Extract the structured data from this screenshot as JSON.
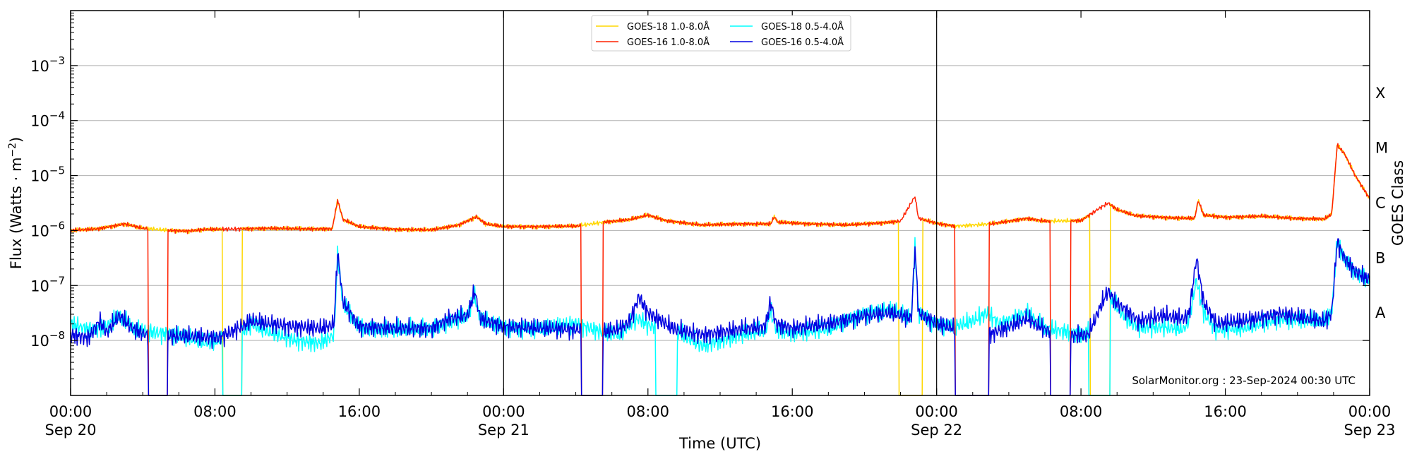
{
  "chart_data": {
    "type": "line",
    "xlabel": "Time (UTC)",
    "ylabel_main": "Flux (Watts · m",
    "ylabel_sup": "−2",
    "ylabel_close": ")",
    "right_label": "GOES Class",
    "credit": "SolarMonitor.org : 23-Sep-2024 00:30 UTC",
    "scale": "log",
    "grid": "horizontal at decades",
    "legend_placement": "top-center",
    "xlim_hours": [
      0,
      72
    ],
    "ylim_exp": [
      -9,
      -2
    ],
    "xticks": [
      {
        "h": 0,
        "line1": "00:00",
        "line2": "Sep 20"
      },
      {
        "h": 8,
        "line1": "08:00",
        "line2": ""
      },
      {
        "h": 16,
        "line1": "16:00",
        "line2": ""
      },
      {
        "h": 24,
        "line1": "00:00",
        "line2": "Sep 21"
      },
      {
        "h": 32,
        "line1": "08:00",
        "line2": ""
      },
      {
        "h": 40,
        "line1": "16:00",
        "line2": ""
      },
      {
        "h": 48,
        "line1": "00:00",
        "line2": "Sep 22"
      },
      {
        "h": 56,
        "line1": "08:00",
        "line2": ""
      },
      {
        "h": 64,
        "line1": "16:00",
        "line2": ""
      },
      {
        "h": 72,
        "line1": "00:00",
        "line2": "Sep 23"
      }
    ],
    "yticks": [
      {
        "exp": -8,
        "base": "10",
        "sup": "−8"
      },
      {
        "exp": -7,
        "base": "10",
        "sup": "−7"
      },
      {
        "exp": -6,
        "base": "10",
        "sup": "−6"
      },
      {
        "exp": -5,
        "base": "10",
        "sup": "−5"
      },
      {
        "exp": -4,
        "base": "10",
        "sup": "−4"
      },
      {
        "exp": -3,
        "base": "10",
        "sup": "−3"
      }
    ],
    "goes_classes": [
      {
        "label": "A",
        "exp": -7.5
      },
      {
        "label": "B",
        "exp": -6.5
      },
      {
        "label": "C",
        "exp": -5.5
      },
      {
        "label": "M",
        "exp": -4.5
      },
      {
        "label": "X",
        "exp": -3.5
      }
    ],
    "day_lines_hours": [
      24,
      48
    ],
    "series": [
      {
        "name": "GOES-18 1.0-8.0Å",
        "color": "#ffd700",
        "points": [
          [
            0,
            -6.0
          ],
          [
            1.5,
            -5.97
          ],
          [
            3,
            -5.88
          ],
          [
            4,
            -5.96
          ],
          [
            5.5,
            -6.0
          ],
          [
            6.5,
            -6.01
          ],
          [
            7.5,
            -5.98
          ],
          [
            8.2,
            -5.98
          ],
          [
            9.5,
            -5.97
          ],
          [
            11,
            -5.96
          ],
          [
            13,
            -5.97
          ],
          [
            14.5,
            -5.97
          ],
          [
            14.8,
            -5.45
          ],
          [
            15.1,
            -5.8
          ],
          [
            16,
            -5.93
          ],
          [
            18,
            -5.98
          ],
          [
            20,
            -5.99
          ],
          [
            21.5,
            -5.9
          ],
          [
            22.5,
            -5.75
          ],
          [
            23,
            -5.88
          ],
          [
            24,
            -5.93
          ],
          [
            26,
            -5.93
          ],
          [
            28,
            -5.92
          ],
          [
            29.5,
            -5.85
          ],
          [
            31,
            -5.8
          ],
          [
            32,
            -5.72
          ],
          [
            33,
            -5.82
          ],
          [
            35,
            -5.9
          ],
          [
            37,
            -5.88
          ],
          [
            38.8,
            -5.88
          ],
          [
            39,
            -5.75
          ],
          [
            39.2,
            -5.85
          ],
          [
            41,
            -5.88
          ],
          [
            43,
            -5.9
          ],
          [
            45,
            -5.86
          ],
          [
            46,
            -5.83
          ],
          [
            46.8,
            -5.38
          ],
          [
            47,
            -5.78
          ],
          [
            48,
            -5.87
          ],
          [
            49,
            -5.92
          ],
          [
            51,
            -5.88
          ],
          [
            52,
            -5.83
          ],
          [
            53,
            -5.78
          ],
          [
            54,
            -5.83
          ],
          [
            56,
            -5.82
          ],
          [
            57,
            -5.6
          ],
          [
            57.5,
            -5.5
          ],
          [
            58,
            -5.62
          ],
          [
            59,
            -5.73
          ],
          [
            61,
            -5.77
          ],
          [
            62.3,
            -5.78
          ],
          [
            62.5,
            -5.45
          ],
          [
            62.8,
            -5.72
          ],
          [
            64,
            -5.76
          ],
          [
            66,
            -5.74
          ],
          [
            68,
            -5.78
          ],
          [
            69.5,
            -5.79
          ],
          [
            69.9,
            -5.7
          ],
          [
            70.2,
            -4.45
          ],
          [
            70.6,
            -4.6
          ],
          [
            71.2,
            -5.0
          ],
          [
            72,
            -5.42
          ]
        ],
        "dropouts": [
          [
            8.4,
            9.5
          ],
          [
            45.9,
            47.2
          ],
          [
            56.5,
            57.6
          ]
        ]
      },
      {
        "name": "GOES-16 1.0-8.0Å",
        "color": "#ff2000",
        "points": [
          [
            0,
            -6.0
          ],
          [
            1.5,
            -5.97
          ],
          [
            3,
            -5.88
          ],
          [
            4,
            -5.96
          ],
          [
            5.5,
            -6.0
          ],
          [
            6.5,
            -6.01
          ],
          [
            7.5,
            -5.98
          ],
          [
            8.2,
            -5.98
          ],
          [
            9.5,
            -5.97
          ],
          [
            11,
            -5.96
          ],
          [
            13,
            -5.97
          ],
          [
            14.5,
            -5.97
          ],
          [
            14.8,
            -5.45
          ],
          [
            15.1,
            -5.8
          ],
          [
            16,
            -5.93
          ],
          [
            18,
            -5.98
          ],
          [
            20,
            -5.99
          ],
          [
            21.5,
            -5.9
          ],
          [
            22.5,
            -5.75
          ],
          [
            23,
            -5.88
          ],
          [
            24,
            -5.93
          ],
          [
            26,
            -5.93
          ],
          [
            28,
            -5.92
          ],
          [
            29.5,
            -5.85
          ],
          [
            31,
            -5.8
          ],
          [
            32,
            -5.72
          ],
          [
            33,
            -5.82
          ],
          [
            35,
            -5.9
          ],
          [
            37,
            -5.88
          ],
          [
            38.8,
            -5.88
          ],
          [
            39,
            -5.75
          ],
          [
            39.2,
            -5.85
          ],
          [
            41,
            -5.88
          ],
          [
            43,
            -5.9
          ],
          [
            45,
            -5.86
          ],
          [
            46,
            -5.83
          ],
          [
            46.8,
            -5.38
          ],
          [
            47,
            -5.78
          ],
          [
            48,
            -5.87
          ],
          [
            49,
            -5.92
          ],
          [
            51,
            -5.88
          ],
          [
            52,
            -5.83
          ],
          [
            53,
            -5.78
          ],
          [
            54,
            -5.83
          ],
          [
            56,
            -5.82
          ],
          [
            57,
            -5.6
          ],
          [
            57.5,
            -5.5
          ],
          [
            58,
            -5.62
          ],
          [
            59,
            -5.73
          ],
          [
            61,
            -5.77
          ],
          [
            62.3,
            -5.78
          ],
          [
            62.5,
            -5.45
          ],
          [
            62.8,
            -5.72
          ],
          [
            64,
            -5.76
          ],
          [
            66,
            -5.74
          ],
          [
            68,
            -5.78
          ],
          [
            69.5,
            -5.79
          ],
          [
            69.9,
            -5.7
          ],
          [
            70.2,
            -4.45
          ],
          [
            70.6,
            -4.6
          ],
          [
            71.2,
            -5.0
          ],
          [
            72,
            -5.42
          ]
        ],
        "dropouts": [
          [
            4.3,
            5.4
          ],
          [
            28.3,
            29.5
          ],
          [
            49.0,
            50.9
          ],
          [
            54.3,
            55.4
          ]
        ]
      },
      {
        "name": "GOES-18 0.5-4.0Å",
        "color": "#00ffff",
        "points": [
          [
            0,
            -7.7
          ],
          [
            1,
            -7.8
          ],
          [
            2,
            -7.75
          ],
          [
            2.7,
            -7.55
          ],
          [
            3.5,
            -7.8
          ],
          [
            4.5,
            -7.85
          ],
          [
            6,
            -7.9
          ],
          [
            7.5,
            -8.05
          ],
          [
            8.2,
            -8.0
          ],
          [
            9.5,
            -7.85
          ],
          [
            10,
            -7.7
          ],
          [
            11,
            -7.85
          ],
          [
            12.5,
            -8.0
          ],
          [
            13.8,
            -8.05
          ],
          [
            14.6,
            -7.9
          ],
          [
            14.8,
            -6.45
          ],
          [
            15.1,
            -7.35
          ],
          [
            16,
            -7.75
          ],
          [
            18,
            -7.8
          ],
          [
            20,
            -7.78
          ],
          [
            21,
            -7.65
          ],
          [
            22,
            -7.55
          ],
          [
            22.4,
            -7.2
          ],
          [
            22.7,
            -7.62
          ],
          [
            24,
            -7.75
          ],
          [
            26,
            -7.8
          ],
          [
            27.5,
            -7.72
          ],
          [
            28,
            -7.7
          ],
          [
            29.5,
            -7.85
          ],
          [
            30.5,
            -7.9
          ],
          [
            31,
            -7.7
          ],
          [
            31.5,
            -7.6
          ],
          [
            32,
            -7.72
          ],
          [
            33.5,
            -7.82
          ],
          [
            35,
            -8.1
          ],
          [
            37,
            -7.9
          ],
          [
            38.5,
            -7.82
          ],
          [
            38.8,
            -7.45
          ],
          [
            39.1,
            -7.8
          ],
          [
            40,
            -7.85
          ],
          [
            42,
            -7.8
          ],
          [
            44,
            -7.5
          ],
          [
            45.5,
            -7.45
          ],
          [
            46.6,
            -7.6
          ],
          [
            46.8,
            -6.3
          ],
          [
            47,
            -7.5
          ],
          [
            48,
            -7.7
          ],
          [
            49,
            -7.75
          ],
          [
            50,
            -7.65
          ],
          [
            50.8,
            -7.5
          ],
          [
            51.5,
            -7.7
          ],
          [
            53,
            -7.5
          ],
          [
            54,
            -7.78
          ],
          [
            55.5,
            -7.85
          ],
          [
            56.2,
            -7.9
          ],
          [
            57,
            -7.3
          ],
          [
            57.5,
            -7.1
          ],
          [
            57.9,
            -7.35
          ],
          [
            58.5,
            -7.6
          ],
          [
            59.2,
            -7.75
          ],
          [
            60.5,
            -7.75
          ],
          [
            61.7,
            -7.8
          ],
          [
            62,
            -7.6
          ],
          [
            62.4,
            -6.9
          ],
          [
            62.8,
            -7.5
          ],
          [
            63.5,
            -7.8
          ],
          [
            65,
            -7.78
          ],
          [
            67,
            -7.6
          ],
          [
            69.5,
            -7.65
          ],
          [
            69.9,
            -7.5
          ],
          [
            70.2,
            -6.2
          ],
          [
            70.6,
            -6.5
          ],
          [
            71.2,
            -6.75
          ],
          [
            72,
            -6.9
          ]
        ],
        "dropouts": [
          [
            8.4,
            9.5
          ],
          [
            32.4,
            33.6
          ],
          [
            56.4,
            57.6
          ]
        ]
      },
      {
        "name": "GOES-16 0.5-4.0Å",
        "color": "#0000e0",
        "points": [
          [
            0,
            -7.9
          ],
          [
            1,
            -7.95
          ],
          [
            1.6,
            -7.65
          ],
          [
            2,
            -7.85
          ],
          [
            2.7,
            -7.55
          ],
          [
            3.5,
            -7.8
          ],
          [
            4.2,
            -7.9
          ],
          [
            5.6,
            -7.92
          ],
          [
            7,
            -7.93
          ],
          [
            8.2,
            -7.95
          ],
          [
            9.5,
            -7.75
          ],
          [
            10,
            -7.65
          ],
          [
            11,
            -7.7
          ],
          [
            12.5,
            -7.75
          ],
          [
            14,
            -7.78
          ],
          [
            14.6,
            -7.7
          ],
          [
            14.8,
            -6.4
          ],
          [
            15.1,
            -7.3
          ],
          [
            16,
            -7.75
          ],
          [
            18,
            -7.78
          ],
          [
            20,
            -7.78
          ],
          [
            21,
            -7.6
          ],
          [
            22,
            -7.55
          ],
          [
            22.4,
            -7.1
          ],
          [
            22.7,
            -7.6
          ],
          [
            24,
            -7.75
          ],
          [
            26,
            -7.78
          ],
          [
            28,
            -7.8
          ],
          [
            29.6,
            -7.85
          ],
          [
            30.5,
            -7.78
          ],
          [
            31,
            -7.65
          ],
          [
            31.5,
            -7.2
          ],
          [
            32,
            -7.5
          ],
          [
            33.5,
            -7.8
          ],
          [
            35,
            -7.9
          ],
          [
            37,
            -7.8
          ],
          [
            38.5,
            -7.75
          ],
          [
            38.8,
            -7.3
          ],
          [
            39.1,
            -7.7
          ],
          [
            40,
            -7.78
          ],
          [
            42,
            -7.7
          ],
          [
            44,
            -7.55
          ],
          [
            45.5,
            -7.5
          ],
          [
            46.6,
            -7.6
          ],
          [
            46.8,
            -6.3
          ],
          [
            47,
            -7.5
          ],
          [
            48,
            -7.7
          ],
          [
            49,
            -7.78
          ],
          [
            51,
            -7.88
          ],
          [
            52,
            -7.75
          ],
          [
            53,
            -7.6
          ],
          [
            54,
            -7.8
          ],
          [
            55.4,
            -7.9
          ],
          [
            56.4,
            -7.9
          ],
          [
            57.2,
            -7.3
          ],
          [
            57.5,
            -7.1
          ],
          [
            57.9,
            -7.3
          ],
          [
            58.5,
            -7.45
          ],
          [
            59.2,
            -7.65
          ],
          [
            60.5,
            -7.55
          ],
          [
            61.7,
            -7.6
          ],
          [
            62,
            -7.5
          ],
          [
            62.4,
            -6.5
          ],
          [
            62.8,
            -7.3
          ],
          [
            63.5,
            -7.7
          ],
          [
            65,
            -7.65
          ],
          [
            67,
            -7.52
          ],
          [
            69.5,
            -7.65
          ],
          [
            69.9,
            -7.5
          ],
          [
            70.2,
            -6.2
          ],
          [
            70.6,
            -6.5
          ],
          [
            71.2,
            -6.75
          ],
          [
            72,
            -6.9
          ]
        ],
        "dropouts": [
          [
            4.3,
            5.4
          ],
          [
            28.3,
            29.5
          ],
          [
            49.0,
            50.9
          ],
          [
            54.3,
            55.4
          ]
        ]
      }
    ]
  }
}
